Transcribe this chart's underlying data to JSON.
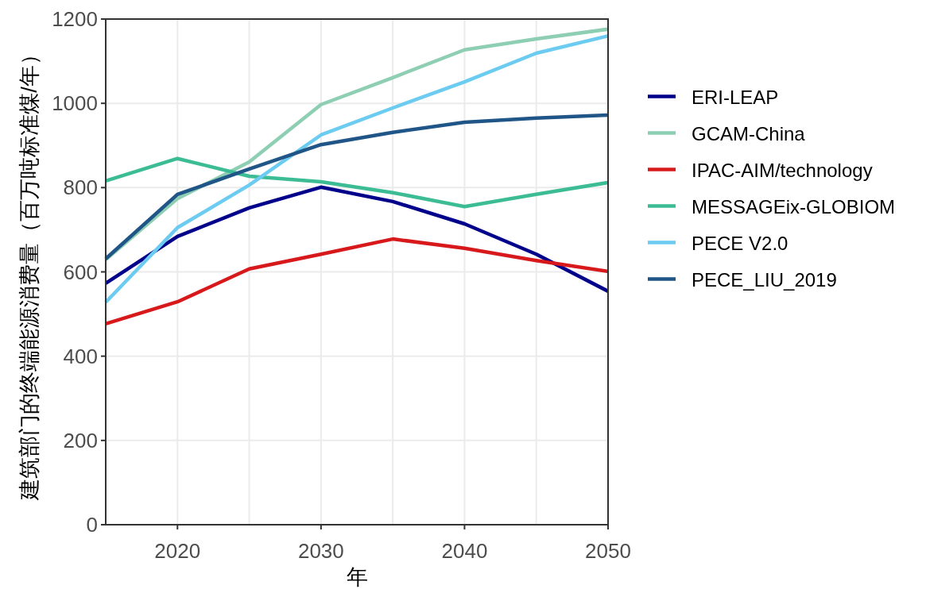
{
  "chart_data": {
    "type": "line",
    "xlabel": "年",
    "ylabel": "建筑部门的终端能源消费量（百万吨标准煤/年）",
    "x": [
      2015,
      2020,
      2025,
      2030,
      2035,
      2040,
      2045,
      2050
    ],
    "series": [
      {
        "name": "ERI-LEAP",
        "color": "#00008b",
        "values": [
          573,
          684,
          752,
          801,
          767,
          714,
          642,
          554
        ]
      },
      {
        "name": "GCAM-China",
        "color": "#8ecfb4",
        "values": [
          629,
          774,
          861,
          997,
          1061,
          1127,
          1153,
          1176
        ]
      },
      {
        "name": "IPAC-AIM/technology",
        "color": "#d7191c",
        "values": [
          477,
          529,
          607,
          642,
          678,
          656,
          627,
          601
        ]
      },
      {
        "name": "MESSAGEix-GLOBIOM",
        "color": "#3cbc94",
        "values": [
          816,
          869,
          827,
          814,
          788,
          755,
          784,
          812
        ]
      },
      {
        "name": "PECE V2.0",
        "color": "#6ccbf0",
        "values": [
          528,
          705,
          806,
          925,
          989,
          1051,
          1119,
          1160
        ]
      },
      {
        "name": "PECE_LIU_2019",
        "color": "#1f5587",
        "values": [
          631,
          784,
          844,
          902,
          931,
          955,
          965,
          972
        ]
      }
    ],
    "xlim": [
      2015,
      2050
    ],
    "xticks": [
      2020,
      {
        "value": 2025,
        "label": null
      },
      2030,
      {
        "value": 2035,
        "label": null
      },
      2040,
      {
        "value": 2045,
        "label": null
      },
      2050
    ],
    "ylim": [
      0,
      1200
    ],
    "yticks": [
      0,
      200,
      400,
      600,
      800,
      1000,
      1200
    ],
    "grid": true,
    "legend": "right",
    "marker": "none",
    "line_style": "solid"
  }
}
